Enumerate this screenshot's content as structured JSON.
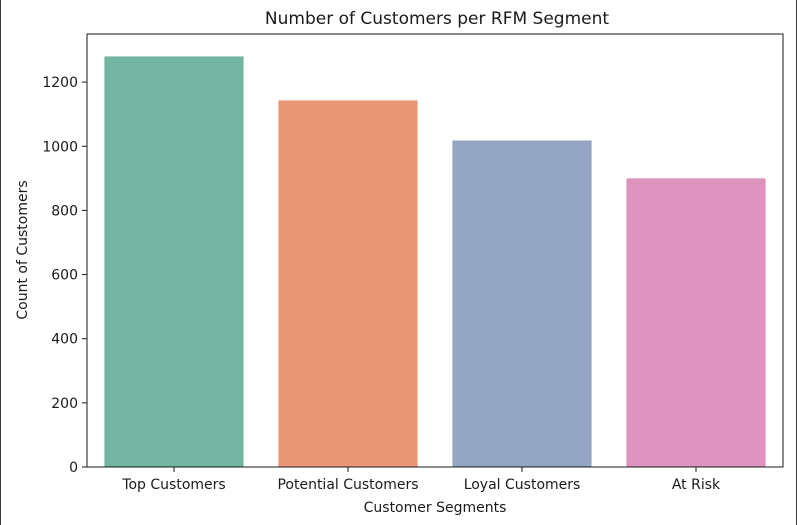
{
  "chart_data": {
    "type": "bar",
    "title": "Number of Customers per RFM Segment",
    "xlabel": "Customer Segments",
    "ylabel": "Count of Customers",
    "categories": [
      "Top Customers",
      "Potential Customers",
      "Loyal Customers",
      "At Risk"
    ],
    "values": [
      1280,
      1143,
      1018,
      900
    ],
    "colors": [
      "#72b5a0",
      "#e99774",
      "#94a5c4",
      "#dc94bf"
    ],
    "ylim": [
      0,
      1350
    ],
    "yticks": [
      0,
      200,
      400,
      600,
      800,
      1000,
      1200
    ],
    "grid": false,
    "legend": "none"
  }
}
